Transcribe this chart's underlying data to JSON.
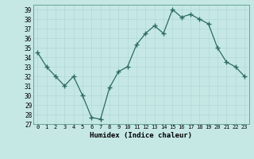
{
  "x": [
    0,
    1,
    2,
    3,
    4,
    5,
    6,
    7,
    8,
    9,
    10,
    11,
    12,
    13,
    14,
    15,
    16,
    17,
    18,
    19,
    20,
    21,
    22,
    23
  ],
  "y": [
    34.5,
    33.0,
    32.0,
    31.0,
    32.0,
    30.0,
    27.7,
    27.5,
    30.8,
    32.5,
    33.0,
    35.3,
    36.5,
    37.3,
    36.5,
    39.0,
    38.2,
    38.5,
    38.0,
    37.5,
    35.0,
    33.5,
    33.0,
    32.0
  ],
  "xlabel": "Humidex (Indice chaleur)",
  "ylim": [
    27,
    39.5
  ],
  "xlim": [
    -0.5,
    23.5
  ],
  "yticks": [
    27,
    28,
    29,
    30,
    31,
    32,
    33,
    34,
    35,
    36,
    37,
    38,
    39
  ],
  "xticks": [
    0,
    1,
    2,
    3,
    4,
    5,
    6,
    7,
    8,
    9,
    10,
    11,
    12,
    13,
    14,
    15,
    16,
    17,
    18,
    19,
    20,
    21,
    22,
    23
  ],
  "line_color": "#2D6B5E",
  "marker_color": "#2D6B5E",
  "bg_color": "#C5E8E5",
  "grid_color": "#B0D8D4",
  "axes_bg": "#C5E8E5"
}
